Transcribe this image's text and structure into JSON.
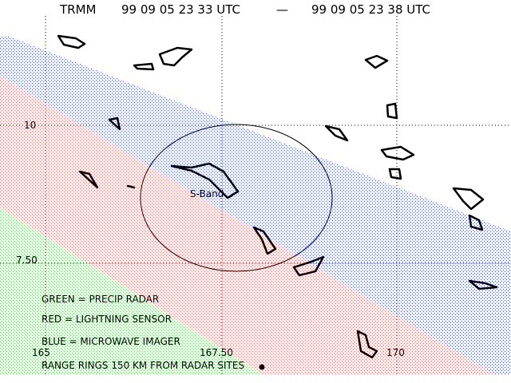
{
  "header": {
    "satellite": "TRMM",
    "start_time": "99 09 05 23 33 UTC",
    "separator": "—",
    "end_time": "99 09 05 23 38 UTC"
  },
  "grid": {
    "latitudes": [
      "10",
      "7.50"
    ],
    "longitudes": [
      "165",
      "167.50",
      "170"
    ]
  },
  "site_label": "S-Band",
  "legend": [
    "GREEN = PRECIP RADAR",
    "RED = LIGHTNING SENSOR",
    "BLUE = MICROWAVE IMAGER",
    "RANGE RINGS 150 KM FROM RADAR SITES"
  ]
}
